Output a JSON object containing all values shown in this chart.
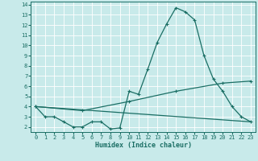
{
  "xlabel": "Humidex (Indice chaleur)",
  "xlim": [
    -0.5,
    23.5
  ],
  "ylim": [
    1.5,
    14.3
  ],
  "yticks": [
    2,
    3,
    4,
    5,
    6,
    7,
    8,
    9,
    10,
    11,
    12,
    13,
    14
  ],
  "xticks": [
    0,
    1,
    2,
    3,
    4,
    5,
    6,
    7,
    8,
    9,
    10,
    11,
    12,
    13,
    14,
    15,
    16,
    17,
    18,
    19,
    20,
    21,
    22,
    23
  ],
  "background_color": "#c8eaea",
  "grid_color": "#b0d4d4",
  "line_color": "#1a6e64",
  "line1_x": [
    0,
    1,
    2,
    3,
    4,
    5,
    6,
    7,
    8,
    9,
    10,
    11,
    12,
    13,
    14,
    15,
    16,
    17,
    18,
    19,
    20,
    21,
    22,
    23
  ],
  "line1_y": [
    4.0,
    3.0,
    3.0,
    2.5,
    2.0,
    2.0,
    2.5,
    2.5,
    1.8,
    1.9,
    5.5,
    5.2,
    7.7,
    10.3,
    12.1,
    13.7,
    13.3,
    12.5,
    9.0,
    6.7,
    5.5,
    4.0,
    3.0,
    2.5
  ],
  "line2_x": [
    0,
    5,
    10,
    15,
    20,
    23
  ],
  "line2_y": [
    4.0,
    3.6,
    4.5,
    5.5,
    6.3,
    6.5
  ],
  "line3_x": [
    0,
    23
  ],
  "line3_y": [
    4.0,
    2.5
  ]
}
